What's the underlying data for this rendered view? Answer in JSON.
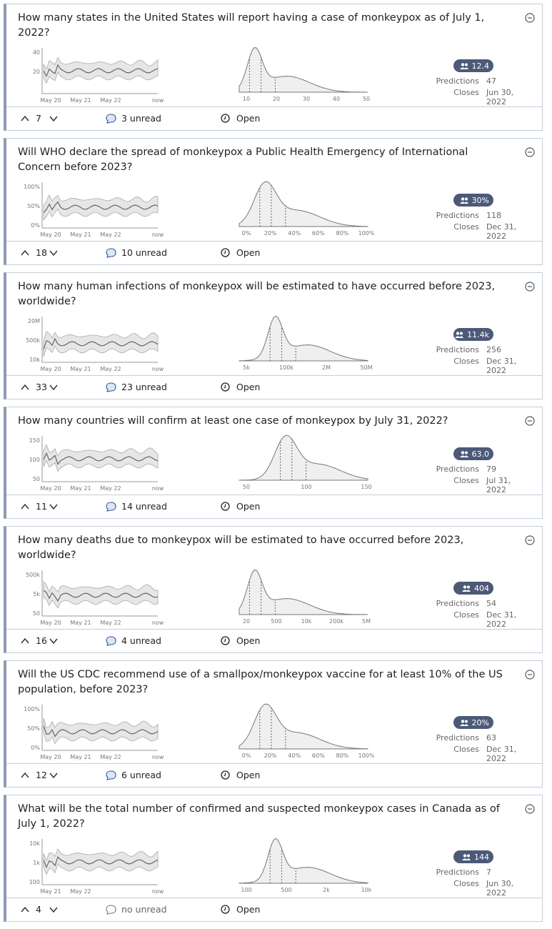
{
  "labels": {
    "predictions": "Predictions",
    "closes": "Closes"
  },
  "questions": [
    {
      "title": "How many states in the United States will report having a case of monkeypox as of July 1, 2022?",
      "community": "12.4",
      "predictions": 47,
      "closes": "Jun 30, 2022",
      "votes": 7,
      "comments": "3 unread",
      "status": "Open",
      "timeline_y": [
        "40",
        "20"
      ],
      "timeline_x": [
        "May 20",
        "May 21",
        "May 22",
        "now"
      ],
      "dist_x": [
        "10",
        "20",
        "30",
        "40",
        "50"
      ]
    },
    {
      "title": "Will WHO declare the spread of monkeypox a Public Health Emergency of International Concern before 2023?",
      "community": "30%",
      "predictions": 118,
      "closes": "Dec 31, 2022",
      "votes": 18,
      "comments": "10 unread",
      "status": "Open",
      "timeline_y": [
        "100%",
        "50%",
        "0%"
      ],
      "timeline_x": [
        "May 20",
        "May 21",
        "May 22",
        "now"
      ],
      "dist_x": [
        "0%",
        "20%",
        "40%",
        "60%",
        "80%",
        "100%"
      ]
    },
    {
      "title": "How many human infections of monkeypox will be estimated to have occurred before 2023, worldwide?",
      "community": "11.4k",
      "predictions": 256,
      "closes": "Dec 31, 2022",
      "votes": 33,
      "comments": "23 unread",
      "status": "Open",
      "timeline_y": [
        "20M",
        "500k",
        "10k"
      ],
      "timeline_x": [
        "May 20",
        "May 21",
        "May 22",
        "now"
      ],
      "dist_x": [
        "5k",
        "100k",
        "2M",
        "50M"
      ]
    },
    {
      "title": "How many countries will confirm at least one case of monkeypox by July 31, 2022?",
      "community": "63.0",
      "predictions": 79,
      "closes": "Jul 31, 2022",
      "votes": 11,
      "comments": "14 unread",
      "status": "Open",
      "timeline_y": [
        "150",
        "100",
        "50"
      ],
      "timeline_x": [
        "May 20",
        "May 21",
        "May 22",
        "now"
      ],
      "dist_x": [
        "50",
        "100",
        "150"
      ]
    },
    {
      "title": "How many deaths due to monkeypox will be estimated to have occurred before 2023, worldwide?",
      "community": "404",
      "predictions": 54,
      "closes": "Dec 31, 2022",
      "votes": 16,
      "comments": "4 unread",
      "status": "Open",
      "timeline_y": [
        "500k",
        "5k",
        "50"
      ],
      "timeline_x": [
        "May 20",
        "May 21",
        "May 22",
        "now"
      ],
      "dist_x": [
        "20",
        "500",
        "10k",
        "200k",
        "5M"
      ]
    },
    {
      "title": "Will the US CDC recommend use of a smallpox/monkeypox vaccine for at least 10% of the US population, before 2023?",
      "community": "20%",
      "predictions": 63,
      "closes": "Dec 31, 2022",
      "votes": 12,
      "comments": "6 unread",
      "status": "Open",
      "timeline_y": [
        "100%",
        "50%",
        "0%"
      ],
      "timeline_x": [
        "May 20",
        "May 21",
        "May 22",
        "now"
      ],
      "dist_x": [
        "0%",
        "20%",
        "40%",
        "60%",
        "80%",
        "100%"
      ]
    },
    {
      "title": "What will be the total number of confirmed and suspected monkeypox cases in Canada as of July 1, 2022?",
      "community": "144",
      "predictions": 7,
      "closes": "Jun 30, 2022",
      "votes": 4,
      "comments": "no unread",
      "status": "Open",
      "timeline_y": [
        "10k",
        "1k",
        "100"
      ],
      "timeline_x": [
        "May 21",
        "May 22",
        "now"
      ],
      "dist_x": [
        "100",
        "500",
        "2k",
        "10k"
      ]
    }
  ]
}
